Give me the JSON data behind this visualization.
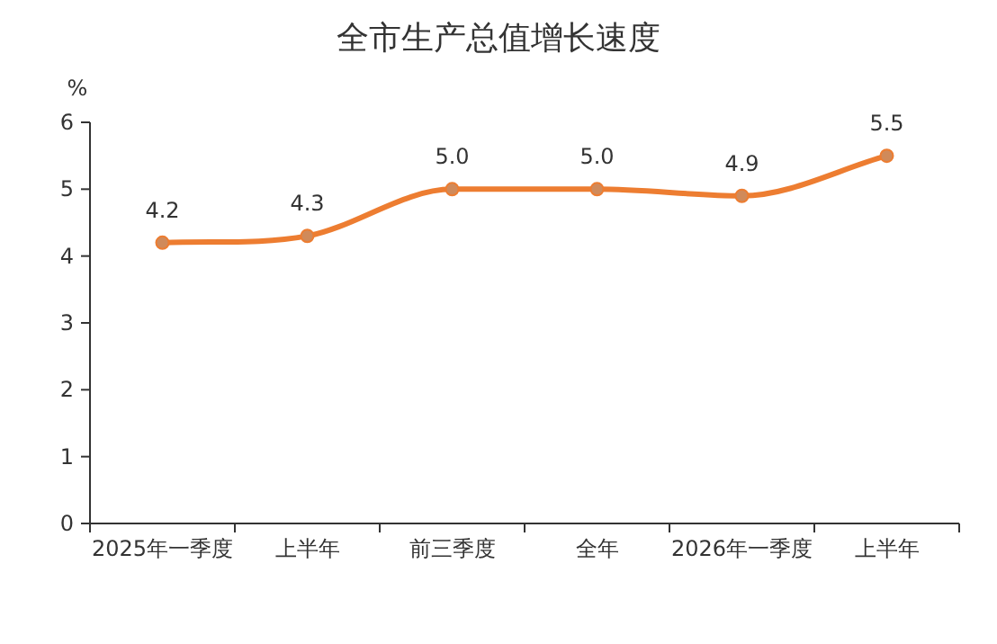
{
  "chart_data": {
    "type": "line",
    "title": "全市生产总值增长速度",
    "ylabel": "%",
    "categories": [
      "2025年一季度",
      "上半年",
      "前三季度",
      "全年",
      "2026年一季度",
      "上半年"
    ],
    "series": [
      {
        "color": "#ed7d31",
        "values": [
          4.2,
          4.3,
          5.0,
          5.0,
          4.9,
          5.5
        ],
        "value_labels": [
          "4.2",
          "4.3",
          "5.0",
          "5.0",
          "4.9",
          "5.5"
        ]
      }
    ],
    "ylim": [
      0,
      6
    ],
    "yticks": [
      0,
      1,
      2,
      3,
      4,
      5,
      6
    ],
    "marker": "circle",
    "grid": false
  }
}
